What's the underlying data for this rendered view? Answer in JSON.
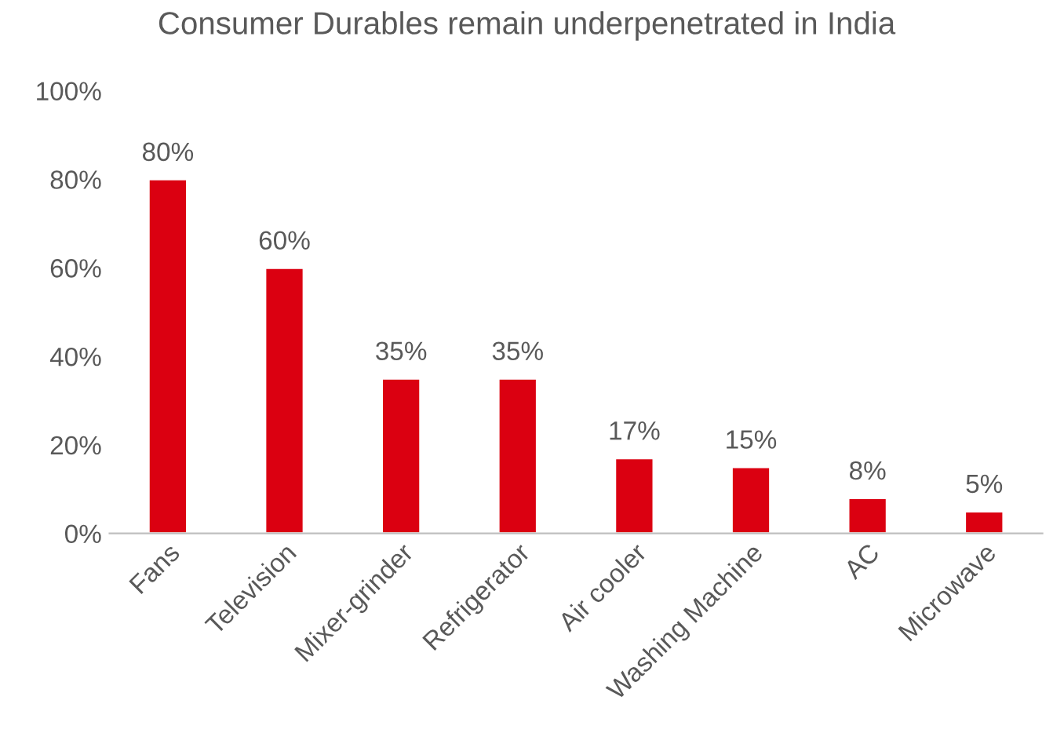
{
  "chart_data": {
    "type": "bar",
    "title": "Consumer Durables remain underpenetrated in India",
    "categories": [
      "Fans",
      "Television",
      "Mixer-grinder",
      "Refrigerator",
      "Air cooler",
      "Washing Machine",
      "AC",
      "Microwave"
    ],
    "values": [
      80,
      60,
      35,
      35,
      17,
      15,
      8,
      5
    ],
    "value_labels": [
      "80%",
      "60%",
      "35%",
      "35%",
      "17%",
      "15%",
      "8%",
      "5%"
    ],
    "color": "#db0011",
    "ylim": [
      0,
      100
    ],
    "yticks": [
      {
        "value": 0,
        "label": "0%"
      },
      {
        "value": 20,
        "label": "20%"
      },
      {
        "value": 40,
        "label": "40%"
      },
      {
        "value": 60,
        "label": "60%"
      },
      {
        "value": 80,
        "label": "80%"
      },
      {
        "value": 100,
        "label": "100%"
      }
    ],
    "grid": false,
    "legend": false
  }
}
